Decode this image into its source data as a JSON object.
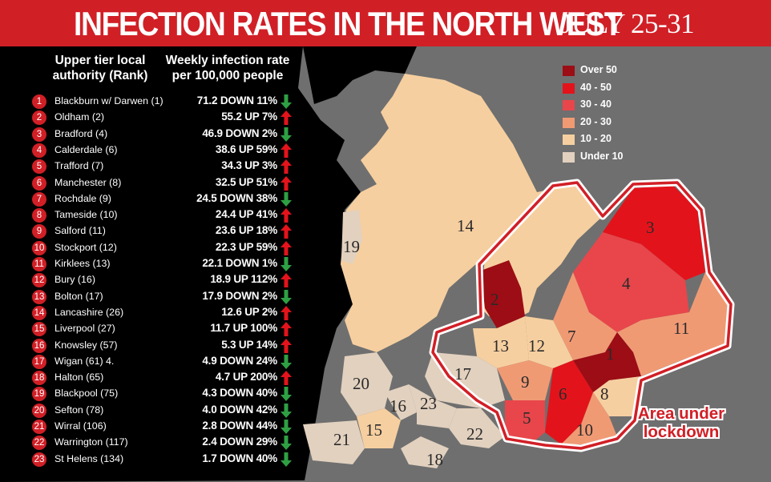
{
  "header": {
    "title": "INFECTION RATES IN THE NORTH WEST",
    "subtitle": "JULY 25-31"
  },
  "table": {
    "col_authority": "Upper tier local authority (Rank)",
    "col_rate": "Weekly infection rate per 100,000 people",
    "rows": [
      {
        "rank": "1",
        "name": "Blackburn w/ Darwen (1)",
        "rate": "71.2 DOWN 11%",
        "trend": "down"
      },
      {
        "rank": "2",
        "name": "Oldham (2)",
        "rate": "55.2 UP 7%",
        "trend": "up"
      },
      {
        "rank": "3",
        "name": "Bradford (4)",
        "rate": "46.9 DOWN 2%",
        "trend": "down"
      },
      {
        "rank": "4",
        "name": "Calderdale (6)",
        "rate": "38.6 UP 59%",
        "trend": "up"
      },
      {
        "rank": "5",
        "name": "Trafford (7)",
        "rate": "34.3 UP 3%",
        "trend": "up"
      },
      {
        "rank": "6",
        "name": "Manchester (8)",
        "rate": "32.5 UP 51%",
        "trend": "up"
      },
      {
        "rank": "7",
        "name": "Rochdale (9)",
        "rate": "24.5 DOWN 38%",
        "trend": "down"
      },
      {
        "rank": "8",
        "name": "Tameside (10)",
        "rate": "24.4 UP 41%",
        "trend": "up"
      },
      {
        "rank": "9",
        "name": "Salford (11)",
        "rate": "23.6 UP 18%",
        "trend": "up"
      },
      {
        "rank": "10",
        "name": "Stockport (12)",
        "rate": "22.3 UP 59%",
        "trend": "up"
      },
      {
        "rank": "11",
        "name": "Kirklees (13)",
        "rate": "22.1 DOWN 1%",
        "trend": "down"
      },
      {
        "rank": "12",
        "name": "Bury (16)",
        "rate": "18.9 UP 112%",
        "trend": "up"
      },
      {
        "rank": "13",
        "name": "Bolton (17)",
        "rate": "17.9 DOWN 2%",
        "trend": "down"
      },
      {
        "rank": "14",
        "name": "Lancashire (26)",
        "rate": "12.6 UP 2%",
        "trend": "up"
      },
      {
        "rank": "15",
        "name": "Liverpool (27)",
        "rate": "11.7 UP 100%",
        "trend": "up"
      },
      {
        "rank": "16",
        "name": "Knowsley (57)",
        "rate": "5.3 UP 14%",
        "trend": "up"
      },
      {
        "rank": "17",
        "name": "Wigan (61) 4.",
        "rate": "4.9 DOWN 24%",
        "trend": "down"
      },
      {
        "rank": "18",
        "name": "Halton (65)",
        "rate": "4.7 UP 200%",
        "trend": "up"
      },
      {
        "rank": "19",
        "name": "Blackpool (75)",
        "rate": "4.3 DOWN 40%",
        "trend": "down"
      },
      {
        "rank": "20",
        "name": "Sefton (78)",
        "rate": "4.0 DOWN 42%",
        "trend": "down"
      },
      {
        "rank": "21",
        "name": "Wirral (106)",
        "rate": "2.8 DOWN 44%",
        "trend": "down"
      },
      {
        "rank": "22",
        "name": "Warrington (117)",
        "rate": "2.4 DOWN 29%",
        "trend": "down"
      },
      {
        "rank": "23",
        "name": "St Helens (134)",
        "rate": "1.7 DOWN 40%",
        "trend": "down"
      }
    ]
  },
  "legend": {
    "items": [
      {
        "label": "Over 50",
        "color": "#9c0d15"
      },
      {
        "label": "40 - 50",
        "color": "#e3131b"
      },
      {
        "label": "30 - 40",
        "color": "#e8464b"
      },
      {
        "label": "20 - 30",
        "color": "#f09a74"
      },
      {
        "label": "10 - 20",
        "color": "#f6cfa0"
      },
      {
        "label": "Under 10",
        "color": "#e2d1bf"
      }
    ]
  },
  "map": {
    "region_labels": [
      "1",
      "2",
      "3",
      "4",
      "5",
      "6",
      "7",
      "8",
      "9",
      "10",
      "11",
      "12",
      "13",
      "14",
      "15",
      "16",
      "17",
      "18",
      "19",
      "20",
      "21",
      "22",
      "23"
    ],
    "lockdown_label": "Area under lockdown"
  },
  "colors": {
    "header_red": "#d11f26",
    "sea_black": "#000000",
    "land_grey": "#6f6f6f",
    "up_arrow": "#e3131b",
    "down_arrow": "#2ea043"
  }
}
